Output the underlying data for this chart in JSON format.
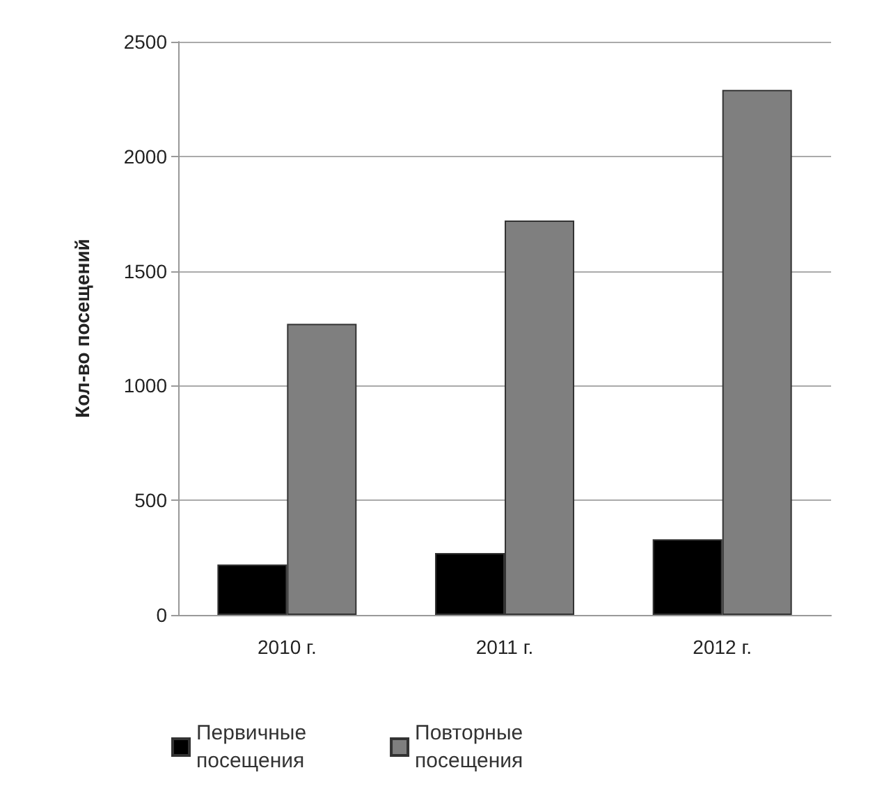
{
  "chart_data": {
    "type": "bar",
    "ylabel": "Кол-во посещений",
    "categories": [
      "2010 г.",
      "2011 г.",
      "2012 г."
    ],
    "series": [
      {
        "name": "Первичные\nпосещения",
        "color": "#000000",
        "values": [
          220,
          270,
          330
        ]
      },
      {
        "name": "Повторные\nпосещения",
        "color": "#7f7f7f",
        "values": [
          1270,
          1720,
          2290
        ]
      }
    ],
    "ylim": [
      0,
      2500
    ],
    "yticks": [
      0,
      500,
      1000,
      1500,
      2000,
      2500
    ],
    "grid": "y",
    "legend": "bottom"
  }
}
